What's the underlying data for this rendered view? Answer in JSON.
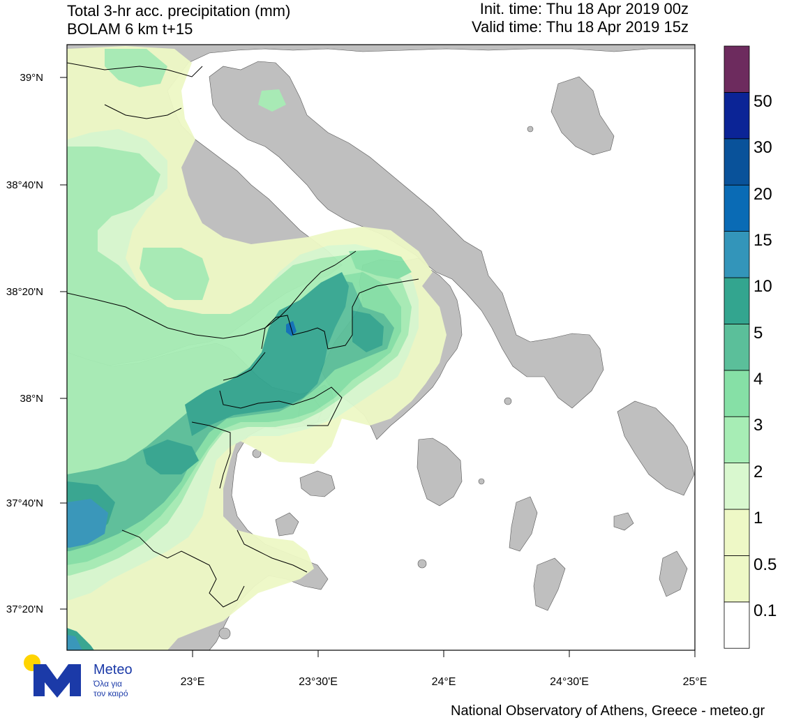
{
  "header": {
    "title_line1": "Total 3-hr acc. precipitation (mm)",
    "title_line2": "BOLAM 6 km t+15",
    "init_time": "Init. time: Thu 18 Apr 2019 00z",
    "valid_time": "Valid time: Thu 18 Apr 2019 15z"
  },
  "axes": {
    "lat_labels": [
      "39°N",
      "38°40'N",
      "38°20'N",
      "38°N",
      "37°40'N",
      "37°20'N"
    ],
    "lon_labels": [
      "23°E",
      "23°30'E",
      "24°E",
      "24°30'E",
      "25°E"
    ]
  },
  "legend": {
    "levels": [
      "0.1",
      "0.5",
      "1",
      "2",
      "3",
      "4",
      "5",
      "10",
      "15",
      "20",
      "30",
      "50"
    ],
    "colors": [
      "#ffffff",
      "#eef8c6",
      "#eef8c6",
      "#d9f8cf",
      "#a7edb5",
      "#86e0a6",
      "#5bbf9a",
      "#33a58f",
      "#3395ba",
      "#0a6bb5",
      "#09529a",
      "#0b2496",
      "#6d2b5e"
    ]
  },
  "colors": {
    "land": "#bfbfbf",
    "sea": "#ffffff",
    "border": "#000000"
  },
  "branding": {
    "name": "Meteo",
    "tagline_1": "Όλα για",
    "tagline_2": "τον καιρό",
    "logo_blue": "#1b3aa8",
    "logo_yellow": "#ffd400"
  },
  "footer": {
    "credit": "National Observatory of Athens, Greece - meteo.gr"
  }
}
